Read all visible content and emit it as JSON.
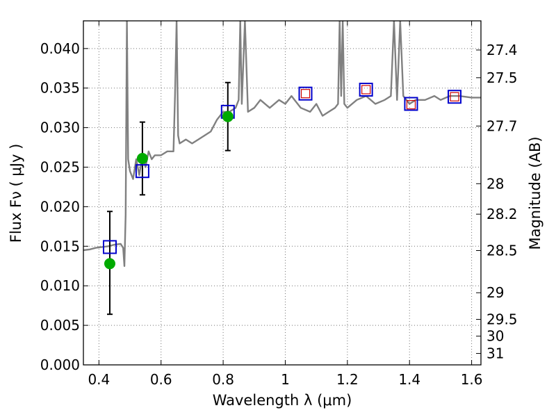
{
  "chart_data": {
    "type": "line",
    "title": "",
    "xlabel": "Wavelength  λ (μm)",
    "ylabel": "Flux  Fν  ( μJy )",
    "y2label": "Magnitude (AB)",
    "xlim": [
      0.35,
      1.63
    ],
    "ylim": [
      0.0,
      0.0435
    ],
    "grid": true,
    "x_ticks": [
      0.4,
      0.6,
      0.8,
      1.0,
      1.2,
      1.4,
      1.6
    ],
    "x_tick_labels": [
      "0.4",
      "0.6",
      "0.8",
      "1",
      "1.2",
      "1.4",
      "1.6"
    ],
    "y_ticks": [
      0.0,
      0.005,
      0.01,
      0.015,
      0.02,
      0.025,
      0.03,
      0.035,
      0.04
    ],
    "y_tick_labels": [
      "0.000",
      "0.005",
      "0.010",
      "0.015",
      "0.020",
      "0.025",
      "0.030",
      "0.035",
      "0.040"
    ],
    "y2_ticks": [
      27.4,
      27.5,
      27.7,
      28,
      28.2,
      28.5,
      29,
      29.5,
      30,
      31
    ],
    "y2_tick_labels": [
      "27.4",
      "27.5",
      "27.7",
      "28",
      "28.2",
      "28.5",
      "29",
      "29.5",
      "30",
      "31"
    ],
    "series": [
      {
        "kind": "spectrum",
        "color": "#808080",
        "x": [
          0.35,
          0.37,
          0.39,
          0.41,
          0.43,
          0.45,
          0.47,
          0.478,
          0.482,
          0.486,
          0.49,
          0.494,
          0.5,
          0.51,
          0.52,
          0.53,
          0.54,
          0.55,
          0.56,
          0.57,
          0.58,
          0.6,
          0.62,
          0.64,
          0.645,
          0.65,
          0.655,
          0.66,
          0.68,
          0.7,
          0.72,
          0.74,
          0.76,
          0.78,
          0.8,
          0.82,
          0.84,
          0.85,
          0.855,
          0.86,
          0.87,
          0.88,
          0.9,
          0.92,
          0.95,
          0.98,
          1.0,
          1.02,
          1.05,
          1.08,
          1.1,
          1.12,
          1.14,
          1.16,
          1.17,
          1.175,
          1.18,
          1.185,
          1.19,
          1.2,
          1.23,
          1.26,
          1.29,
          1.32,
          1.34,
          1.35,
          1.36,
          1.37,
          1.38,
          1.4,
          1.42,
          1.45,
          1.48,
          1.5,
          1.53,
          1.56,
          1.6,
          1.63
        ],
        "y": [
          0.0145,
          0.0146,
          0.0148,
          0.0149,
          0.015,
          0.0152,
          0.0153,
          0.0148,
          0.0125,
          0.019,
          0.0435,
          0.026,
          0.0245,
          0.0235,
          0.026,
          0.024,
          0.0265,
          0.025,
          0.027,
          0.026,
          0.0265,
          0.0265,
          0.027,
          0.027,
          0.034,
          0.0435,
          0.029,
          0.028,
          0.0285,
          0.028,
          0.0285,
          0.029,
          0.0295,
          0.031,
          0.032,
          0.032,
          0.0325,
          0.0335,
          0.0435,
          0.033,
          0.0435,
          0.032,
          0.0325,
          0.0335,
          0.0325,
          0.0335,
          0.033,
          0.034,
          0.0325,
          0.032,
          0.033,
          0.0315,
          0.032,
          0.0325,
          0.033,
          0.0435,
          0.034,
          0.0435,
          0.033,
          0.0325,
          0.0335,
          0.034,
          0.033,
          0.0335,
          0.034,
          0.0435,
          0.0335,
          0.0435,
          0.034,
          0.033,
          0.0335,
          0.0335,
          0.034,
          0.0335,
          0.034,
          0.034,
          0.0338,
          0.0338
        ]
      },
      {
        "kind": "blue-squares",
        "color": "#0000cc",
        "x": [
          0.435,
          0.54,
          0.815,
          1.065,
          1.26,
          1.405,
          1.545
        ],
        "y": [
          0.0149,
          0.0245,
          0.032,
          0.0343,
          0.0348,
          0.033,
          0.0339
        ]
      },
      {
        "kind": "red-squares",
        "color": "#cc0000",
        "x": [
          1.065,
          1.26,
          1.405,
          1.545
        ],
        "y": [
          0.0343,
          0.0348,
          0.0329,
          0.0339
        ]
      },
      {
        "kind": "green-points",
        "color": "#00aa00",
        "x": [
          0.435,
          0.54,
          0.815
        ],
        "y": [
          0.0128,
          0.0261,
          0.0314
        ],
        "yerr_low": [
          0.0064,
          0.0215,
          0.0271
        ],
        "yerr_high": [
          0.0194,
          0.0307,
          0.0357
        ]
      }
    ]
  }
}
